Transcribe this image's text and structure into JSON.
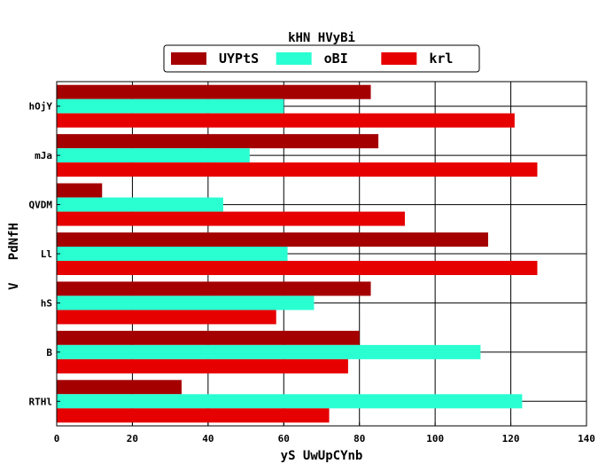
{
  "chart_data": {
    "type": "bar",
    "orientation": "horizontal",
    "title": "kHN HVyBi",
    "xlabel": "yS UwUpCYnb",
    "ylabel": "V   PdNfH",
    "categories": [
      "hOjY",
      "mJa",
      "QVDM",
      "Ll",
      "hS",
      "B",
      "RTHl"
    ],
    "series": [
      {
        "name": "UYPtS",
        "color": "#a50000",
        "values": [
          83,
          85,
          12,
          114,
          83,
          80,
          33
        ]
      },
      {
        "name": "oBI",
        "color": "#2affd2",
        "values": [
          60,
          51,
          44,
          61,
          68,
          112,
          123
        ]
      },
      {
        "name": "krl",
        "color": "#e60000",
        "values": [
          121,
          127,
          92,
          127,
          58,
          77,
          72
        ]
      }
    ],
    "xlim": [
      0,
      140
    ],
    "xticks": [
      "0",
      "20",
      "40",
      "60",
      "80",
      "100",
      "120",
      "140"
    ],
    "grid": true,
    "legend_position": "top-center"
  }
}
